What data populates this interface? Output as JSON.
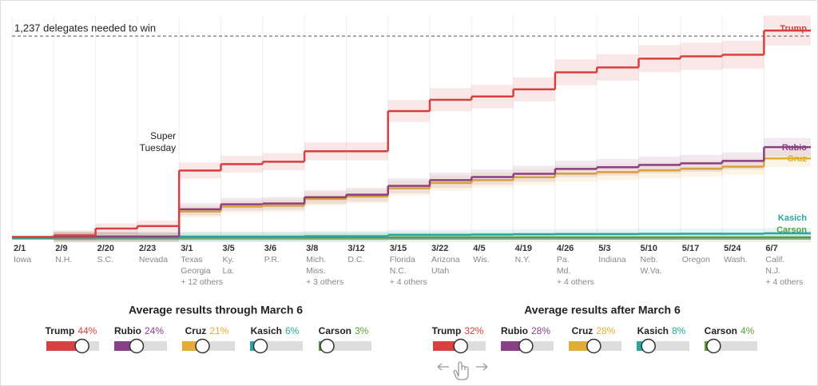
{
  "chart_data": {
    "type": "step",
    "threshold": {
      "value": 1237,
      "label": "1,237 delegates needed to win"
    },
    "annotation": "Super Tuesday",
    "ylim": [
      0,
      1360
    ],
    "categories": [
      "2/1",
      "2/9",
      "2/20",
      "2/23",
      "3/1",
      "3/5",
      "3/6",
      "3/8",
      "3/12",
      "3/15",
      "3/22",
      "4/5",
      "4/19",
      "4/26",
      "5/3",
      "5/10",
      "5/17",
      "5/24",
      "6/7"
    ],
    "category_details": [
      [
        "Iowa"
      ],
      [
        "N.H."
      ],
      [
        "S.C."
      ],
      [
        "Nevada"
      ],
      [
        "Texas",
        "Georgia",
        "+ 12 others"
      ],
      [
        "Ky.",
        "La."
      ],
      [
        "P.R."
      ],
      [
        "Mich.",
        "Miss.",
        "+ 3 others"
      ],
      [
        "D.C."
      ],
      [
        "Florida",
        "N.C.",
        "+ 4 others"
      ],
      [
        "Arizona",
        "Utah"
      ],
      [
        "Wis."
      ],
      [
        "N.Y."
      ],
      [
        "Pa.",
        "Md.",
        "+ 4 others"
      ],
      [
        "Indiana"
      ],
      [
        "Neb.",
        "W.Va."
      ],
      [
        "Oregon"
      ],
      [
        "Wash."
      ],
      [
        "Calif.",
        "N.J.",
        "+ 4 others"
      ]
    ],
    "series": [
      {
        "name": "Trump",
        "color": "#d9403f",
        "values": [
          7,
          17,
          59,
          74,
          414,
          453,
          468,
          532,
          532,
          778,
          847,
          867,
          911,
          1015,
          1045,
          1099,
          1113,
          1123,
          1271
        ]
      },
      {
        "name": "Rubio",
        "color": "#8a3f86",
        "values": [
          7,
          10,
          10,
          10,
          177,
          207,
          212,
          251,
          266,
          320,
          355,
          374,
          394,
          424,
          434,
          448,
          458,
          473,
          557
        ]
      },
      {
        "name": "Cruz",
        "color": "#e3ad34",
        "values": [
          8,
          10,
          10,
          10,
          163,
          193,
          199,
          240,
          255,
          305,
          338,
          355,
          373,
          395,
          404,
          415,
          425,
          438,
          488
        ]
      },
      {
        "name": "Kasich",
        "color": "#2aa6a2",
        "values": [
          1,
          4,
          5,
          5,
          10,
          10,
          10,
          12,
          12,
          20,
          20,
          22,
          24,
          25,
          25,
          26,
          27,
          27,
          30
        ]
      },
      {
        "name": "Carson",
        "color": "#5a9e3a",
        "values": [
          3,
          3,
          3,
          3,
          5,
          5,
          5,
          5,
          5,
          5,
          5,
          5,
          5,
          5,
          5,
          5,
          5,
          5,
          5
        ]
      }
    ],
    "panels": [
      {
        "title": "Average results through March 6",
        "sliders": [
          {
            "name": "Trump",
            "pct": {
              "value": 44,
              "label": "44%"
            }
          },
          {
            "name": "Rubio",
            "pct": {
              "value": 24,
              "label": "24%"
            }
          },
          {
            "name": "Cruz",
            "pct": {
              "value": 21,
              "label": "21%"
            }
          },
          {
            "name": "Kasich",
            "pct": {
              "value": 6,
              "label": "6%"
            }
          },
          {
            "name": "Carson",
            "pct": {
              "value": 3,
              "label": "3%"
            }
          }
        ]
      },
      {
        "title": "Average results after March 6",
        "sliders": [
          {
            "name": "Trump",
            "pct": {
              "value": 32,
              "label": "32%"
            }
          },
          {
            "name": "Rubio",
            "pct": {
              "value": 28,
              "label": "28%"
            }
          },
          {
            "name": "Cruz",
            "pct": {
              "value": 28,
              "label": "28%"
            }
          },
          {
            "name": "Kasich",
            "pct": {
              "value": 8,
              "label": "8%"
            }
          },
          {
            "name": "Carson",
            "pct": {
              "value": 4,
              "label": "4%"
            }
          }
        ]
      }
    ]
  }
}
